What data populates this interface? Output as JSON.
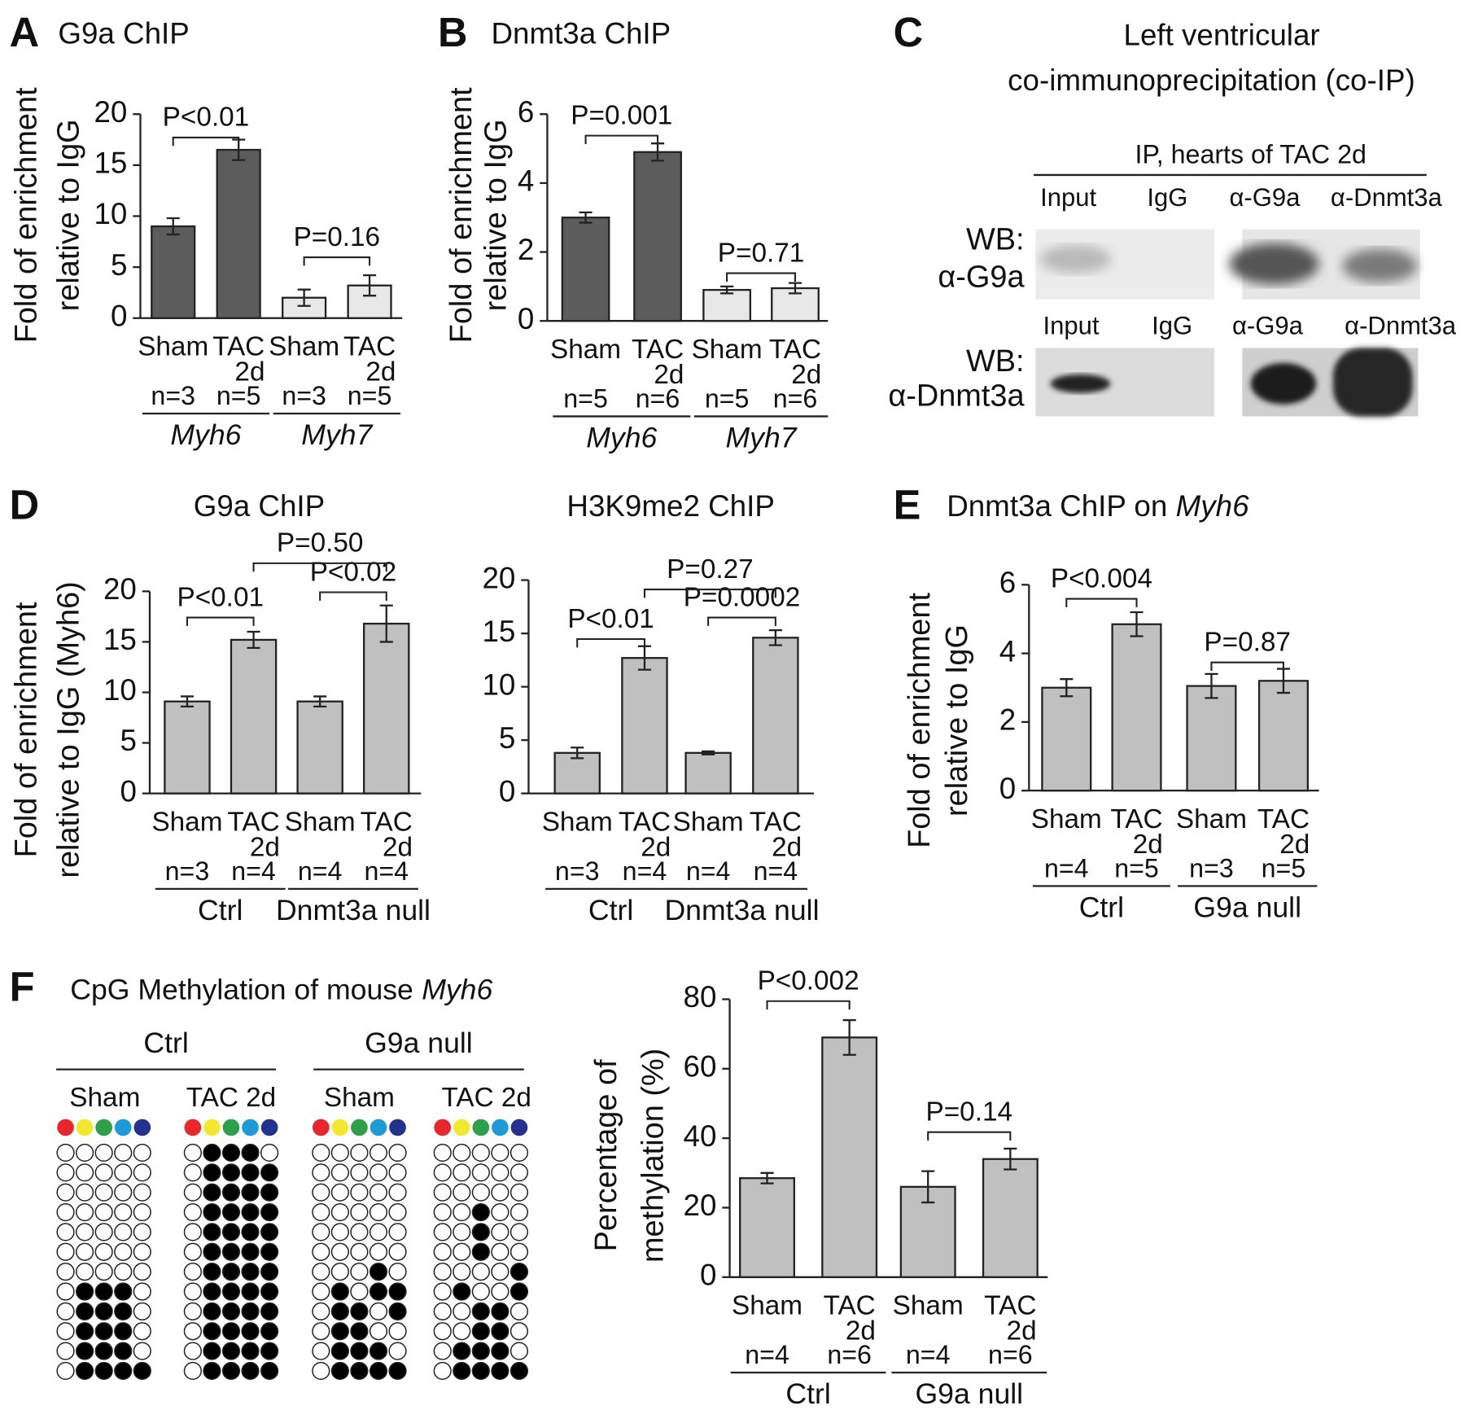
{
  "chart_data": [
    {
      "type": "bar",
      "panel": "A",
      "title": "G9a ChIP",
      "ylabel": [
        "Fold of enrichment",
        "relative to IgG"
      ],
      "ylim": [
        0,
        20
      ],
      "yticks": [
        0,
        5,
        10,
        15,
        20
      ],
      "categories": [
        "Sham",
        "TAC 2d",
        "Sham",
        "TAC 2d"
      ],
      "n_labels": [
        "n=3",
        "n=5",
        "n=3",
        "n=5"
      ],
      "groups": [
        "Myh6",
        "Myh7"
      ],
      "groups_italic": true,
      "values": [
        9,
        16.5,
        2,
        3.2
      ],
      "errors": [
        0.8,
        1,
        0.8,
        1
      ],
      "colors": [
        "#5c5c5c",
        "#5c5c5c",
        "#e8e8e8",
        "#e8e8e8"
      ],
      "comparisons": [
        "P<0.01",
        "P=0.16"
      ]
    },
    {
      "type": "bar",
      "panel": "B",
      "title": "Dnmt3a ChIP",
      "ylabel": [
        "Fold of enrichment",
        "relative to IgG"
      ],
      "ylim": [
        0,
        6
      ],
      "yticks": [
        0,
        2,
        4,
        6
      ],
      "categories": [
        "Sham",
        "TAC 2d",
        "Sham",
        "TAC 2d"
      ],
      "n_labels": [
        "n=5",
        "n=6",
        "n=5",
        "n=6"
      ],
      "groups": [
        "Myh6",
        "Myh7"
      ],
      "groups_italic": true,
      "values": [
        3.0,
        4.9,
        0.9,
        0.95
      ],
      "errors": [
        0.15,
        0.25,
        0.1,
        0.15
      ],
      "colors": [
        "#5c5c5c",
        "#5c5c5c",
        "#e8e8e8",
        "#e8e8e8"
      ],
      "comparisons": [
        "P=0.001",
        "P=0.71"
      ]
    },
    {
      "type": "bar",
      "panel": "D",
      "title": "G9a ChIP",
      "ylabel": [
        "Fold of enrichment",
        "relative to IgG (Myh6)"
      ],
      "ylim": [
        0,
        20
      ],
      "yticks": [
        0,
        5,
        10,
        15,
        20
      ],
      "categories": [
        "Sham",
        "TAC 2d",
        "Sham",
        "TAC 2d"
      ],
      "n_labels": [
        "n=3",
        "n=4",
        "n=4",
        "n=4"
      ],
      "groups": [
        "Ctrl",
        "Dnmt3a null"
      ],
      "groups_italic": false,
      "values": [
        9.1,
        15.2,
        9.1,
        16.8
      ],
      "errors": [
        0.5,
        0.8,
        0.5,
        1.8
      ],
      "colors": [
        "#c0c0c0",
        "#c0c0c0",
        "#c0c0c0",
        "#c0c0c0"
      ],
      "comparisons": [
        "P<0.01",
        "P<0.02",
        "P=0.50"
      ]
    },
    {
      "type": "bar",
      "title": "H3K9me2 ChIP",
      "ylim": [
        0,
        20
      ],
      "yticks": [
        0,
        5,
        10,
        15,
        20
      ],
      "categories": [
        "Sham",
        "TAC 2d",
        "Sham",
        "TAC 2d"
      ],
      "n_labels": [
        "n=3",
        "n=4",
        "n=4",
        "n=4"
      ],
      "groups": [
        "Ctrl",
        "Dnmt3a null"
      ],
      "groups_italic": false,
      "values": [
        3.8,
        12.7,
        3.8,
        14.6
      ],
      "errors": [
        0.5,
        1.1,
        0.15,
        0.7
      ],
      "colors": [
        "#c0c0c0",
        "#c0c0c0",
        "#c0c0c0",
        "#c0c0c0"
      ],
      "comparisons": [
        "P<0.01",
        "P=0.0002",
        "P=0.27"
      ]
    },
    {
      "type": "bar",
      "panel": "E",
      "title": "Dnmt3a ChIP on",
      "title_italic": "Myh6",
      "ylabel": [
        "Fold of enrichment",
        "relative to IgG"
      ],
      "ylim": [
        0,
        6
      ],
      "yticks": [
        0,
        2,
        4,
        6
      ],
      "categories": [
        "Sham",
        "TAC 2d",
        "Sham",
        "TAC 2d"
      ],
      "n_labels": [
        "n=4",
        "n=5",
        "n=3",
        "n=5"
      ],
      "groups": [
        "Ctrl",
        "G9a null"
      ],
      "groups_italic": false,
      "values": [
        3.0,
        4.85,
        3.05,
        3.2
      ],
      "errors": [
        0.25,
        0.35,
        0.35,
        0.35
      ],
      "colors": [
        "#c0c0c0",
        "#c0c0c0",
        "#c0c0c0",
        "#c0c0c0"
      ],
      "comparisons": [
        "P<0.004",
        "P=0.87"
      ]
    },
    {
      "type": "bar",
      "ylabel": [
        "Percentage of",
        "methylation (%)"
      ],
      "ylim": [
        0,
        80
      ],
      "yticks": [
        0,
        20,
        40,
        60,
        80
      ],
      "categories": [
        "Sham",
        "TAC 2d",
        "Sham",
        "TAC 2d"
      ],
      "n_labels": [
        "n=4",
        "n=6",
        "n=4",
        "n=6"
      ],
      "groups": [
        "Ctrl",
        "G9a null"
      ],
      "groups_italic": false,
      "values": [
        28.5,
        69,
        26,
        34
      ],
      "errors": [
        1.5,
        5,
        4.5,
        3
      ],
      "colors": [
        "#c0c0c0",
        "#c0c0c0",
        "#c0c0c0",
        "#c0c0c0"
      ],
      "comparisons": [
        "P<0.002",
        "P=0.14"
      ]
    }
  ],
  "panel_c": {
    "panel": "C",
    "title": [
      "Left ventricular",
      "co-immunoprecipitation (co-IP)"
    ],
    "header": "IP, hearts of TAC 2d",
    "blots": [
      {
        "wb": [
          "WB:",
          "α-G9a"
        ],
        "lanes": [
          "Input",
          "IgG",
          "α-G9a",
          "α-Dnmt3a"
        ]
      },
      {
        "wb": [
          "WB:",
          "α-Dnmt3a"
        ],
        "lanes": [
          "Input",
          "IgG",
          "α-G9a",
          "α-Dnmt3a"
        ]
      }
    ]
  },
  "methylation": {
    "panel": "F",
    "title": "CpG Methylation of mouse",
    "title_italic": "Myh6",
    "groups": [
      {
        "label": "Ctrl",
        "conditions": [
          {
            "label": "Sham",
            "clones": [
              [
                0,
                0,
                0,
                0,
                0
              ],
              [
                0,
                0,
                0,
                0,
                0
              ],
              [
                0,
                0,
                0,
                0,
                0
              ],
              [
                0,
                0,
                0,
                0,
                0
              ],
              [
                0,
                0,
                0,
                0,
                0
              ],
              [
                0,
                0,
                0,
                0,
                0
              ],
              [
                0,
                0,
                0,
                0,
                0
              ],
              [
                0,
                1,
                1,
                1,
                0
              ],
              [
                0,
                1,
                1,
                1,
                0
              ],
              [
                0,
                1,
                1,
                1,
                0
              ],
              [
                0,
                1,
                1,
                1,
                0
              ],
              [
                0,
                1,
                1,
                1,
                1
              ]
            ]
          },
          {
            "label": "TAC 2d",
            "clones": [
              [
                0,
                1,
                1,
                1,
                0
              ],
              [
                0,
                1,
                1,
                1,
                1
              ],
              [
                0,
                1,
                1,
                1,
                1
              ],
              [
                0,
                1,
                1,
                1,
                1
              ],
              [
                0,
                1,
                1,
                1,
                1
              ],
              [
                0,
                1,
                1,
                1,
                1
              ],
              [
                0,
                1,
                1,
                1,
                1
              ],
              [
                0,
                1,
                1,
                1,
                1
              ],
              [
                0,
                1,
                1,
                1,
                1
              ],
              [
                0,
                1,
                1,
                1,
                1
              ],
              [
                0,
                1,
                1,
                1,
                1
              ],
              [
                0,
                1,
                1,
                1,
                1
              ]
            ]
          }
        ]
      },
      {
        "label": "G9a null",
        "conditions": [
          {
            "label": "Sham",
            "clones": [
              [
                0,
                0,
                0,
                0,
                0
              ],
              [
                0,
                0,
                0,
                0,
                0
              ],
              [
                0,
                0,
                0,
                0,
                0
              ],
              [
                0,
                0,
                0,
                0,
                0
              ],
              [
                0,
                0,
                0,
                0,
                0
              ],
              [
                0,
                0,
                0,
                0,
                0
              ],
              [
                0,
                0,
                0,
                1,
                0
              ],
              [
                0,
                1,
                0,
                1,
                1
              ],
              [
                0,
                1,
                1,
                0,
                1
              ],
              [
                0,
                1,
                1,
                0,
                0
              ],
              [
                0,
                1,
                1,
                1,
                0
              ],
              [
                0,
                1,
                1,
                1,
                1
              ]
            ]
          },
          {
            "label": "TAC 2d",
            "clones": [
              [
                0,
                0,
                0,
                0,
                0
              ],
              [
                0,
                0,
                0,
                0,
                0
              ],
              [
                0,
                0,
                0,
                0,
                0
              ],
              [
                0,
                0,
                1,
                0,
                0
              ],
              [
                0,
                0,
                1,
                0,
                0
              ],
              [
                0,
                0,
                1,
                0,
                0
              ],
              [
                0,
                0,
                0,
                0,
                1
              ],
              [
                0,
                1,
                0,
                0,
                1
              ],
              [
                0,
                0,
                1,
                1,
                0
              ],
              [
                0,
                0,
                1,
                1,
                0
              ],
              [
                0,
                1,
                1,
                1,
                0
              ],
              [
                0,
                1,
                1,
                1,
                1
              ]
            ]
          }
        ]
      }
    ]
  }
}
